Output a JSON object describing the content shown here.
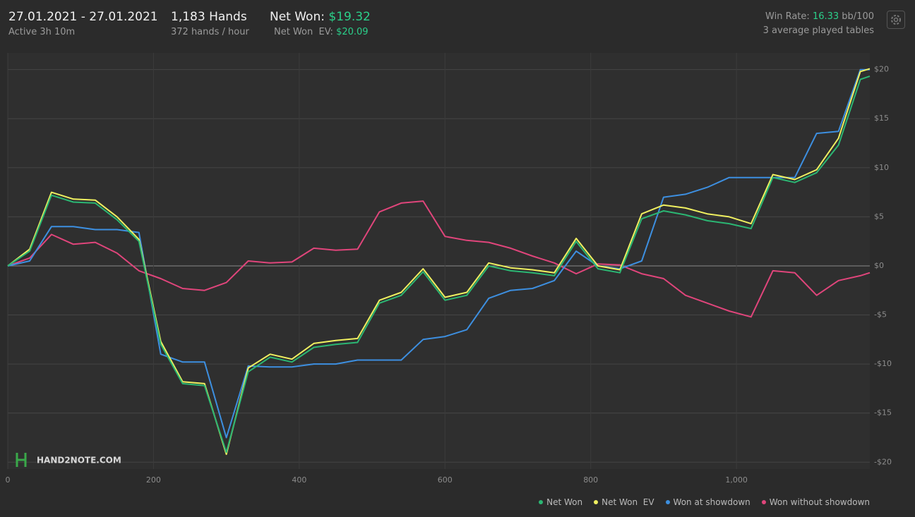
{
  "header": {
    "date_range": "27.01.2021 - 27.01.2021",
    "active": "Active 3h 10m",
    "hands": "1,183 Hands",
    "hands_per_hour": "372 hands / hour",
    "net_won_label": "Net Won:",
    "net_won": "$19.32",
    "net_won_ev_label": "Net Won  EV:",
    "net_won_ev": "$20.09",
    "win_rate_label": "Win Rate:",
    "win_rate": "16.33",
    "win_rate_unit": "bb/100",
    "tables": "3 average played tables",
    "watermark": "HAND2NOTE.COM"
  },
  "chart_data": {
    "type": "line",
    "grid": true,
    "legend": "bottom-right",
    "xlim": [
      0,
      1183
    ],
    "ylim": [
      -20.7,
      21.7
    ],
    "xticks": [
      0,
      200,
      400,
      600,
      800,
      {
        "value": 1000,
        "label": "1,000"
      }
    ],
    "yticks": [
      {
        "value": 20,
        "label": "$20"
      },
      {
        "value": 15,
        "label": "$15"
      },
      {
        "value": 10,
        "label": "$10"
      },
      {
        "value": 5,
        "label": "$5"
      },
      {
        "value": 0,
        "label": "$0"
      },
      {
        "value": -5,
        "label": "-$5"
      },
      {
        "value": -10,
        "label": "-$10"
      },
      {
        "value": -15,
        "label": "-$15"
      },
      {
        "value": -20,
        "label": "-$20"
      }
    ],
    "x": [
      0,
      30,
      60,
      90,
      120,
      150,
      180,
      210,
      240,
      270,
      300,
      330,
      360,
      390,
      420,
      450,
      480,
      510,
      540,
      570,
      600,
      630,
      660,
      690,
      720,
      750,
      780,
      810,
      840,
      870,
      900,
      930,
      960,
      990,
      1020,
      1050,
      1080,
      1110,
      1140,
      1170,
      1183
    ],
    "series": [
      {
        "name": "Won without showdown",
        "color": "#e0457b",
        "values": [
          0,
          0.8,
          3.2,
          2.2,
          2.4,
          1.3,
          -0.5,
          -1.3,
          -2.3,
          -2.5,
          -1.7,
          0.5,
          0.3,
          0.4,
          1.8,
          1.6,
          1.7,
          5.5,
          6.4,
          6.6,
          3.0,
          2.6,
          2.4,
          1.8,
          1.0,
          0.3,
          -0.8,
          0.2,
          0.1,
          -0.8,
          -1.3,
          -3.0,
          -3.8,
          -4.6,
          -5.2,
          -0.5,
          -0.7,
          -3.0,
          -1.5,
          -1.0,
          -0.7
        ]
      },
      {
        "name": "Won at showdown",
        "color": "#3d8fe0",
        "values": [
          0,
          0.5,
          4.0,
          4.0,
          3.7,
          3.7,
          3.4,
          -9.0,
          -9.8,
          -9.8,
          -17.5,
          -10.2,
          -10.3,
          -10.3,
          -10.0,
          -10.0,
          -9.6,
          -9.6,
          -9.6,
          -7.5,
          -7.2,
          -6.5,
          -3.3,
          -2.5,
          -2.3,
          -1.5,
          1.5,
          0.0,
          -0.3,
          0.5,
          7.0,
          7.3,
          8.0,
          9.0,
          9.0,
          9.0,
          9.0,
          13.5,
          13.7,
          20.0,
          20.0
        ]
      },
      {
        "name": "Net Won  EV",
        "color": "#f0f060",
        "values": [
          0,
          1.7,
          7.5,
          6.8,
          6.7,
          5.0,
          2.7,
          -7.7,
          -11.8,
          -12.0,
          -19.2,
          -10.4,
          -9.0,
          -9.5,
          -7.9,
          -7.6,
          -7.4,
          -3.5,
          -2.7,
          -0.3,
          -3.2,
          -2.7,
          0.3,
          -0.2,
          -0.4,
          -0.7,
          2.8,
          0.0,
          -0.4,
          5.3,
          6.2,
          5.9,
          5.3,
          5.0,
          4.3,
          9.3,
          8.8,
          9.8,
          13.0,
          19.8,
          20.09
        ]
      },
      {
        "name": "Net Won",
        "color": "#2bb673",
        "values": [
          0,
          1.5,
          7.2,
          6.5,
          6.4,
          4.7,
          2.5,
          -8.0,
          -12.0,
          -12.2,
          -19.0,
          -10.8,
          -9.3,
          -9.8,
          -8.3,
          -8.0,
          -7.8,
          -3.8,
          -3.0,
          -0.6,
          -3.5,
          -3.0,
          0.0,
          -0.5,
          -0.7,
          -1.0,
          2.5,
          -0.3,
          -0.7,
          4.8,
          5.6,
          5.2,
          4.6,
          4.3,
          3.8,
          9.0,
          8.5,
          9.5,
          12.3,
          19.0,
          19.32
        ]
      }
    ]
  }
}
